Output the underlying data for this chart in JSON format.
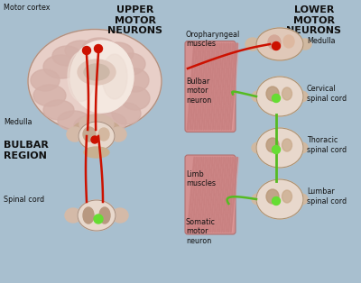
{
  "bg_color": "#a8bfcf",
  "brain_outer": "#e8cfc8",
  "brain_gyri": "#d4b0a8",
  "brain_inner": "#f0e0d8",
  "brain_center": "#c8a898",
  "spinal_main": "#e8d8cc",
  "spinal_side": "#c8b0a0",
  "spinal_inner": "#b89080",
  "medulla_tan": "#c8b090",
  "neuron_red": "#cc1100",
  "neuron_green": "#55bb22",
  "green_dot": "#66dd33",
  "red_dot": "#cc1100",
  "muscle_stripe1": "#c88080",
  "muscle_stripe2": "#e8a0a0",
  "muscle_bg": "#d49090",
  "text_dark": "#111111",
  "text_gray": "#333333",
  "upper_title": "UPPER\nMOTOR\nNEURONS",
  "lower_title": "LOWER\nMOTOR\nNEURONS",
  "bulbar_label": "BULBAR\nREGION",
  "motor_cortex": "Motor cortex",
  "medulla_left": "Medulla",
  "spinal_cord_left": "Spinal cord",
  "oropharyngeal": "Oropharyngeal\nmuscles",
  "bulbar_neuron": "Bulbar\nmotor\nneuron",
  "limb_muscles": "Limb\nmuscles",
  "somatic_neuron": "Somatic\nmotor\nneuron",
  "medulla_right": "Medulla",
  "cervical": "Cervical\nspinal cord",
  "thoracic": "Thoracic\nspinal cord",
  "lumbar": "Lumbar\nspinal cord"
}
